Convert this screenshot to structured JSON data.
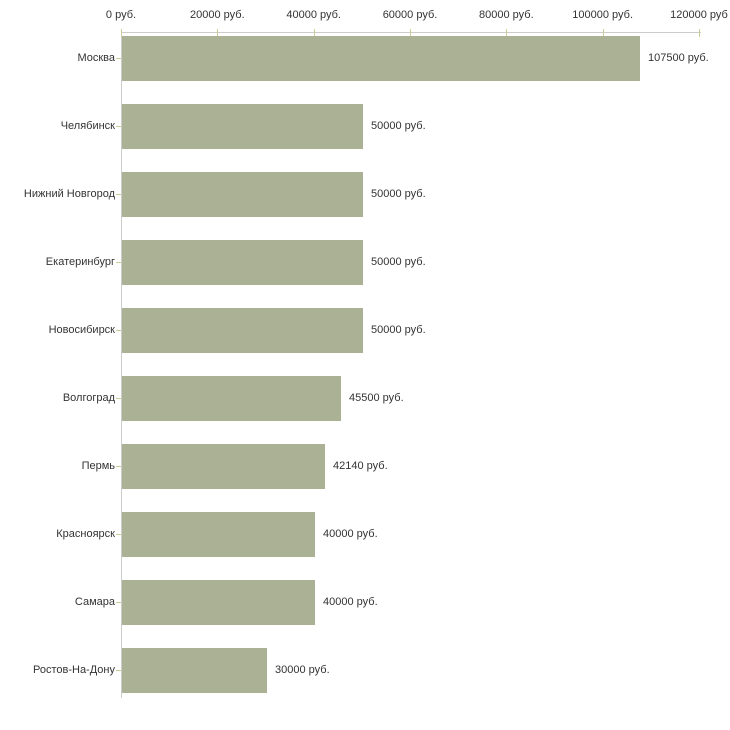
{
  "chart_data": {
    "type": "bar",
    "orientation": "horizontal",
    "title": "",
    "xlabel": "",
    "ylabel": "",
    "xlim": [
      0,
      120000
    ],
    "grid": false,
    "legend": false,
    "categories": [
      "Москва",
      "Челябинск",
      "Нижний Новгород",
      "Екатеринбург",
      "Новосибирск",
      "Волгоград",
      "Пермь",
      "Красноярск",
      "Самара",
      "Ростов-На-Дону"
    ],
    "values": [
      107500,
      50000,
      50000,
      50000,
      50000,
      45500,
      42140,
      40000,
      40000,
      30000
    ],
    "value_labels": [
      "107500 руб.",
      "50000 руб.",
      "50000 руб.",
      "50000 руб.",
      "50000 руб.",
      "45500 руб.",
      "42140 руб.",
      "40000 руб.",
      "40000 руб.",
      "30000 руб."
    ],
    "x_ticks": [
      {
        "value": 0,
        "label": "0 руб."
      },
      {
        "value": 20000,
        "label": "20000 руб."
      },
      {
        "value": 40000,
        "label": "40000 руб."
      },
      {
        "value": 60000,
        "label": "60000 руб."
      },
      {
        "value": 80000,
        "label": "80000 руб."
      },
      {
        "value": 100000,
        "label": "100000 руб."
      },
      {
        "value": 120000,
        "label": "120000 руб"
      }
    ],
    "colors": {
      "bar": "#aab195",
      "axis_line": "#cccccc",
      "tick_mark": "#cccc99",
      "text": "#333333",
      "background": "#ffffff"
    }
  }
}
